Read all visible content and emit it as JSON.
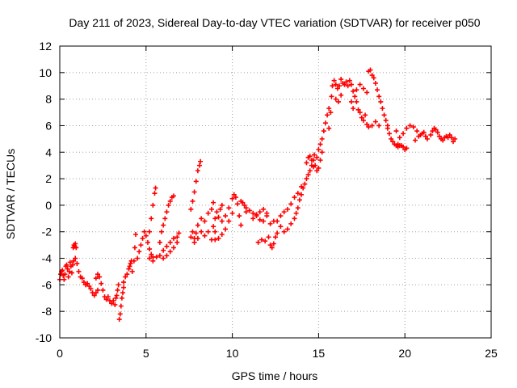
{
  "chart_data": {
    "type": "scatter",
    "title": "Day 211 of 2023, Sidereal Day-to-day VTEC variation (SDTVAR) for receiver p050",
    "xlabel": "GPS time / hours",
    "ylabel": "SDTVAR / TECUs",
    "xlim": [
      0,
      25
    ],
    "ylim": [
      -10,
      12
    ],
    "xticks": [
      0,
      5,
      10,
      15,
      20,
      25
    ],
    "yticks": [
      -10,
      -8,
      -6,
      -4,
      -2,
      0,
      2,
      4,
      6,
      8,
      10,
      12
    ],
    "grid": true,
    "marker": "+",
    "color": "#ff0000",
    "series": [
      {
        "values": [
          [
            0.0,
            -5.6
          ],
          [
            0.05,
            -5.2
          ],
          [
            0.1,
            -5.0
          ],
          [
            0.15,
            -4.9
          ],
          [
            0.2,
            -5.3
          ],
          [
            0.25,
            -5.6
          ],
          [
            0.3,
            -5.2
          ],
          [
            0.35,
            -4.6
          ],
          [
            0.4,
            -4.5
          ],
          [
            0.45,
            -4.8
          ],
          [
            0.5,
            -5.4
          ],
          [
            0.55,
            -5.0
          ],
          [
            0.6,
            -4.3
          ],
          [
            0.65,
            -4.6
          ],
          [
            0.7,
            -5.1
          ],
          [
            0.75,
            -4.5
          ],
          [
            0.78,
            -3.2
          ],
          [
            0.82,
            -3.0
          ],
          [
            0.86,
            -3.1
          ],
          [
            0.9,
            -2.9
          ],
          [
            0.95,
            -3.2
          ],
          [
            0.8,
            -4.2
          ],
          [
            0.9,
            -4.0
          ],
          [
            1.0,
            -4.4
          ],
          [
            1.1,
            -5.0
          ],
          [
            1.2,
            -5.4
          ],
          [
            1.3,
            -5.5
          ],
          [
            1.4,
            -5.8
          ],
          [
            1.5,
            -6.0
          ],
          [
            1.6,
            -5.9
          ],
          [
            1.7,
            -6.1
          ],
          [
            1.8,
            -6.3
          ],
          [
            1.9,
            -6.6
          ],
          [
            2.0,
            -6.8
          ],
          [
            2.1,
            -6.6
          ],
          [
            2.2,
            -6.4
          ],
          [
            2.1,
            -5.5
          ],
          [
            2.2,
            -5.2
          ],
          [
            2.3,
            -5.4
          ],
          [
            2.4,
            -5.9
          ],
          [
            2.5,
            -6.4
          ],
          [
            2.6,
            -6.9
          ],
          [
            2.7,
            -7.1
          ],
          [
            2.8,
            -6.9
          ],
          [
            2.9,
            -7.2
          ],
          [
            3.0,
            -7.4
          ],
          [
            3.1,
            -7.2
          ],
          [
            3.2,
            -7.5
          ],
          [
            3.25,
            -7.0
          ],
          [
            3.3,
            -6.8
          ],
          [
            3.35,
            -6.4
          ],
          [
            3.4,
            -6.0
          ],
          [
            3.45,
            -8.6
          ],
          [
            3.5,
            -8.2
          ],
          [
            3.55,
            -7.6
          ],
          [
            3.6,
            -7.0
          ],
          [
            3.65,
            -6.6
          ],
          [
            3.7,
            -6.2
          ],
          [
            3.7,
            -5.8
          ],
          [
            3.8,
            -5.4
          ],
          [
            3.9,
            -5.2
          ],
          [
            4.0,
            -4.8
          ],
          [
            4.05,
            -4.6
          ],
          [
            4.1,
            -4.4
          ],
          [
            4.15,
            -4.2
          ],
          [
            4.2,
            -5.0
          ],
          [
            4.3,
            -4.2
          ],
          [
            4.35,
            -3.2
          ],
          [
            4.4,
            -2.2
          ],
          [
            4.5,
            -4.0
          ],
          [
            4.6,
            -3.5
          ],
          [
            4.7,
            -3.0
          ],
          [
            4.8,
            -2.5
          ],
          [
            4.9,
            -2.0
          ],
          [
            5.0,
            -2.3
          ],
          [
            5.1,
            -2.8
          ],
          [
            5.2,
            -3.3
          ],
          [
            5.3,
            -3.7
          ],
          [
            5.4,
            -3.9
          ],
          [
            5.2,
            -2.0
          ],
          [
            5.3,
            -1.0
          ],
          [
            5.4,
            0.0
          ],
          [
            5.5,
            0.9
          ],
          [
            5.55,
            1.3
          ],
          [
            5.2,
            -4.0
          ],
          [
            5.4,
            -4.2
          ],
          [
            5.6,
            -3.9
          ],
          [
            5.8,
            -3.8
          ],
          [
            6.0,
            -3.4
          ],
          [
            6.2,
            -3.1
          ],
          [
            6.4,
            -2.8
          ],
          [
            6.6,
            -2.5
          ],
          [
            6.8,
            -2.4
          ],
          [
            6.9,
            -2.1
          ],
          [
            5.8,
            -2.8
          ],
          [
            5.9,
            -2.0
          ],
          [
            6.0,
            -1.5
          ],
          [
            6.1,
            -1.0
          ],
          [
            6.2,
            -0.5
          ],
          [
            6.3,
            0.0
          ],
          [
            6.4,
            0.3
          ],
          [
            6.5,
            0.6
          ],
          [
            6.6,
            0.7
          ],
          [
            6.0,
            -4.0
          ],
          [
            6.2,
            -3.8
          ],
          [
            6.4,
            -3.5
          ],
          [
            6.6,
            -3.2
          ],
          [
            6.8,
            -2.8
          ],
          [
            7.6,
            -2.4
          ],
          [
            7.7,
            -2.0
          ],
          [
            7.8,
            -2.5
          ],
          [
            7.9,
            -2.1
          ],
          [
            7.6,
            -0.3
          ],
          [
            7.7,
            0.3
          ],
          [
            7.8,
            1.0
          ],
          [
            7.9,
            1.8
          ],
          [
            8.0,
            2.6
          ],
          [
            8.1,
            3.0
          ],
          [
            8.15,
            3.3
          ],
          [
            7.8,
            -2.8
          ],
          [
            8.0,
            -2.5
          ],
          [
            8.2,
            -2.0
          ],
          [
            8.4,
            -2.3
          ],
          [
            8.6,
            -2.0
          ],
          [
            8.8,
            -2.6
          ],
          [
            9.0,
            -2.0
          ],
          [
            8.0,
            -1.5
          ],
          [
            8.2,
            -1.0
          ],
          [
            8.4,
            -1.2
          ],
          [
            8.6,
            -0.6
          ],
          [
            8.8,
            -0.3
          ],
          [
            8.9,
            0.2
          ],
          [
            8.9,
            -1.6
          ],
          [
            9.0,
            -1.0
          ],
          [
            9.1,
            -0.5
          ],
          [
            9.2,
            -0.9
          ],
          [
            9.3,
            -0.3
          ],
          [
            9.4,
            0.0
          ],
          [
            9.4,
            -1.2
          ],
          [
            9.6,
            -0.8
          ],
          [
            9.8,
            -0.2
          ],
          [
            10.0,
            0.5
          ],
          [
            10.1,
            0.8
          ],
          [
            10.2,
            0.6
          ],
          [
            10.3,
            0.1
          ],
          [
            10.4,
            -0.8
          ],
          [
            10.5,
            -1.5
          ],
          [
            9.0,
            -2.6
          ],
          [
            9.2,
            -2.5
          ],
          [
            9.4,
            -2.2
          ],
          [
            9.6,
            -1.8
          ],
          [
            9.8,
            -1.2
          ],
          [
            10.0,
            -0.6
          ],
          [
            10.5,
            0.3
          ],
          [
            10.6,
            0.2
          ],
          [
            10.7,
            0.0
          ],
          [
            10.8,
            -0.2
          ],
          [
            10.8,
            -0.5
          ],
          [
            11.0,
            -0.4
          ],
          [
            11.2,
            -0.6
          ],
          [
            11.4,
            -0.8
          ],
          [
            11.6,
            -1.1
          ],
          [
            11.8,
            -1.2
          ],
          [
            12.0,
            -0.8
          ],
          [
            12.2,
            -1.4
          ],
          [
            12.4,
            -1.2
          ],
          [
            11.2,
            -1.0
          ],
          [
            11.4,
            -0.7
          ],
          [
            11.6,
            -0.5
          ],
          [
            11.8,
            -0.3
          ],
          [
            12.0,
            -0.6
          ],
          [
            11.5,
            -2.8
          ],
          [
            11.7,
            -2.6
          ],
          [
            11.9,
            -2.7
          ],
          [
            12.1,
            -2.4
          ],
          [
            12.2,
            -3.0
          ],
          [
            12.3,
            -3.2
          ],
          [
            12.4,
            -2.9
          ],
          [
            12.5,
            -2.4
          ],
          [
            12.6,
            -2.1
          ],
          [
            12.8,
            -1.6
          ],
          [
            13.0,
            -2.0
          ],
          [
            13.2,
            -1.8
          ],
          [
            13.4,
            -1.4
          ],
          [
            13.6,
            -1.0
          ],
          [
            12.6,
            -1.2
          ],
          [
            12.8,
            -0.8
          ],
          [
            13.0,
            -0.5
          ],
          [
            13.2,
            -0.3
          ],
          [
            13.4,
            0.1
          ],
          [
            13.6,
            0.6
          ],
          [
            13.8,
            0.9
          ],
          [
            14.0,
            1.4
          ],
          [
            13.7,
            -0.6
          ],
          [
            13.8,
            -0.2
          ],
          [
            13.9,
            0.4
          ],
          [
            14.0,
            0.8
          ],
          [
            14.1,
            1.3
          ],
          [
            14.2,
            1.6
          ],
          [
            14.3,
            2.0
          ],
          [
            14.4,
            2.3
          ],
          [
            14.5,
            2.6
          ],
          [
            14.6,
            3.0
          ],
          [
            14.7,
            3.4
          ],
          [
            14.75,
            3.8
          ],
          [
            14.3,
            3.2
          ],
          [
            14.4,
            3.6
          ],
          [
            14.5,
            3.7
          ],
          [
            14.6,
            3.4
          ],
          [
            14.7,
            2.9
          ],
          [
            14.8,
            3.0
          ],
          [
            14.9,
            3.6
          ],
          [
            15.0,
            4.2
          ],
          [
            15.1,
            4.6
          ],
          [
            15.2,
            5.0
          ],
          [
            15.3,
            5.6
          ],
          [
            15.4,
            6.2
          ],
          [
            15.5,
            6.8
          ],
          [
            15.6,
            7.3
          ],
          [
            14.9,
            2.6
          ],
          [
            15.0,
            2.8
          ],
          [
            15.1,
            3.4
          ],
          [
            15.2,
            4.0
          ],
          [
            15.6,
            5.8
          ],
          [
            15.7,
            7.0
          ],
          [
            15.75,
            8.2
          ],
          [
            15.8,
            9.0
          ],
          [
            15.9,
            9.4
          ],
          [
            16.0,
            9.1
          ],
          [
            16.1,
            8.8
          ],
          [
            16.2,
            9.0
          ],
          [
            16.3,
            9.5
          ],
          [
            16.4,
            9.2
          ],
          [
            16.5,
            9.1
          ],
          [
            16.6,
            9.3
          ],
          [
            16.7,
            9.0
          ],
          [
            16.0,
            8.0
          ],
          [
            16.15,
            7.8
          ],
          [
            16.3,
            8.3
          ],
          [
            16.8,
            9.4
          ],
          [
            16.9,
            9.1
          ],
          [
            17.0,
            8.6
          ],
          [
            17.1,
            8.2
          ],
          [
            17.2,
            7.8
          ],
          [
            17.3,
            7.2
          ],
          [
            17.4,
            7.0
          ],
          [
            17.5,
            6.6
          ],
          [
            17.6,
            6.4
          ],
          [
            17.7,
            6.8
          ],
          [
            17.8,
            6.1
          ],
          [
            17.9,
            5.9
          ],
          [
            16.9,
            7.8
          ],
          [
            17.0,
            7.3
          ],
          [
            17.2,
            8.7
          ],
          [
            17.4,
            9.1
          ],
          [
            17.6,
            8.8
          ],
          [
            17.8,
            8.5
          ],
          [
            17.9,
            10.1
          ],
          [
            18.0,
            10.2
          ],
          [
            18.1,
            9.8
          ],
          [
            18.2,
            9.6
          ],
          [
            18.3,
            9.2
          ],
          [
            18.4,
            8.7
          ],
          [
            18.5,
            8.2
          ],
          [
            18.6,
            7.8
          ],
          [
            18.7,
            7.3
          ],
          [
            18.8,
            6.8
          ],
          [
            18.9,
            6.4
          ],
          [
            19.0,
            6.0
          ],
          [
            18.1,
            6.0
          ],
          [
            18.3,
            6.3
          ],
          [
            18.5,
            6.0
          ],
          [
            19.0,
            5.8
          ],
          [
            19.1,
            5.4
          ],
          [
            19.2,
            5.0
          ],
          [
            19.3,
            4.8
          ],
          [
            19.4,
            4.6
          ],
          [
            19.5,
            4.5
          ],
          [
            19.6,
            4.4
          ],
          [
            19.6,
            4.6
          ],
          [
            19.7,
            4.5
          ],
          [
            19.8,
            4.5
          ],
          [
            19.9,
            4.4
          ],
          [
            20.0,
            4.2
          ],
          [
            20.1,
            4.3
          ],
          [
            19.5,
            5.6
          ],
          [
            19.7,
            5.1
          ],
          [
            19.9,
            5.4
          ],
          [
            20.1,
            5.8
          ],
          [
            20.3,
            6.0
          ],
          [
            20.5,
            5.9
          ],
          [
            20.7,
            5.6
          ],
          [
            20.9,
            5.3
          ],
          [
            21.1,
            5.5
          ],
          [
            21.3,
            5.0
          ],
          [
            20.6,
            4.9
          ],
          [
            20.8,
            5.2
          ],
          [
            21.0,
            5.4
          ],
          [
            21.2,
            5.2
          ],
          [
            21.5,
            5.3
          ],
          [
            21.6,
            5.6
          ],
          [
            21.7,
            5.8
          ],
          [
            21.8,
            5.7
          ],
          [
            21.9,
            5.5
          ],
          [
            22.0,
            5.2
          ],
          [
            22.1,
            5.0
          ],
          [
            22.2,
            4.9
          ],
          [
            22.3,
            5.1
          ],
          [
            22.4,
            5.2
          ],
          [
            22.5,
            5.1
          ],
          [
            22.6,
            5.3
          ],
          [
            22.7,
            5.1
          ],
          [
            22.8,
            4.8
          ],
          [
            22.9,
            5.0
          ]
        ]
      }
    ]
  }
}
